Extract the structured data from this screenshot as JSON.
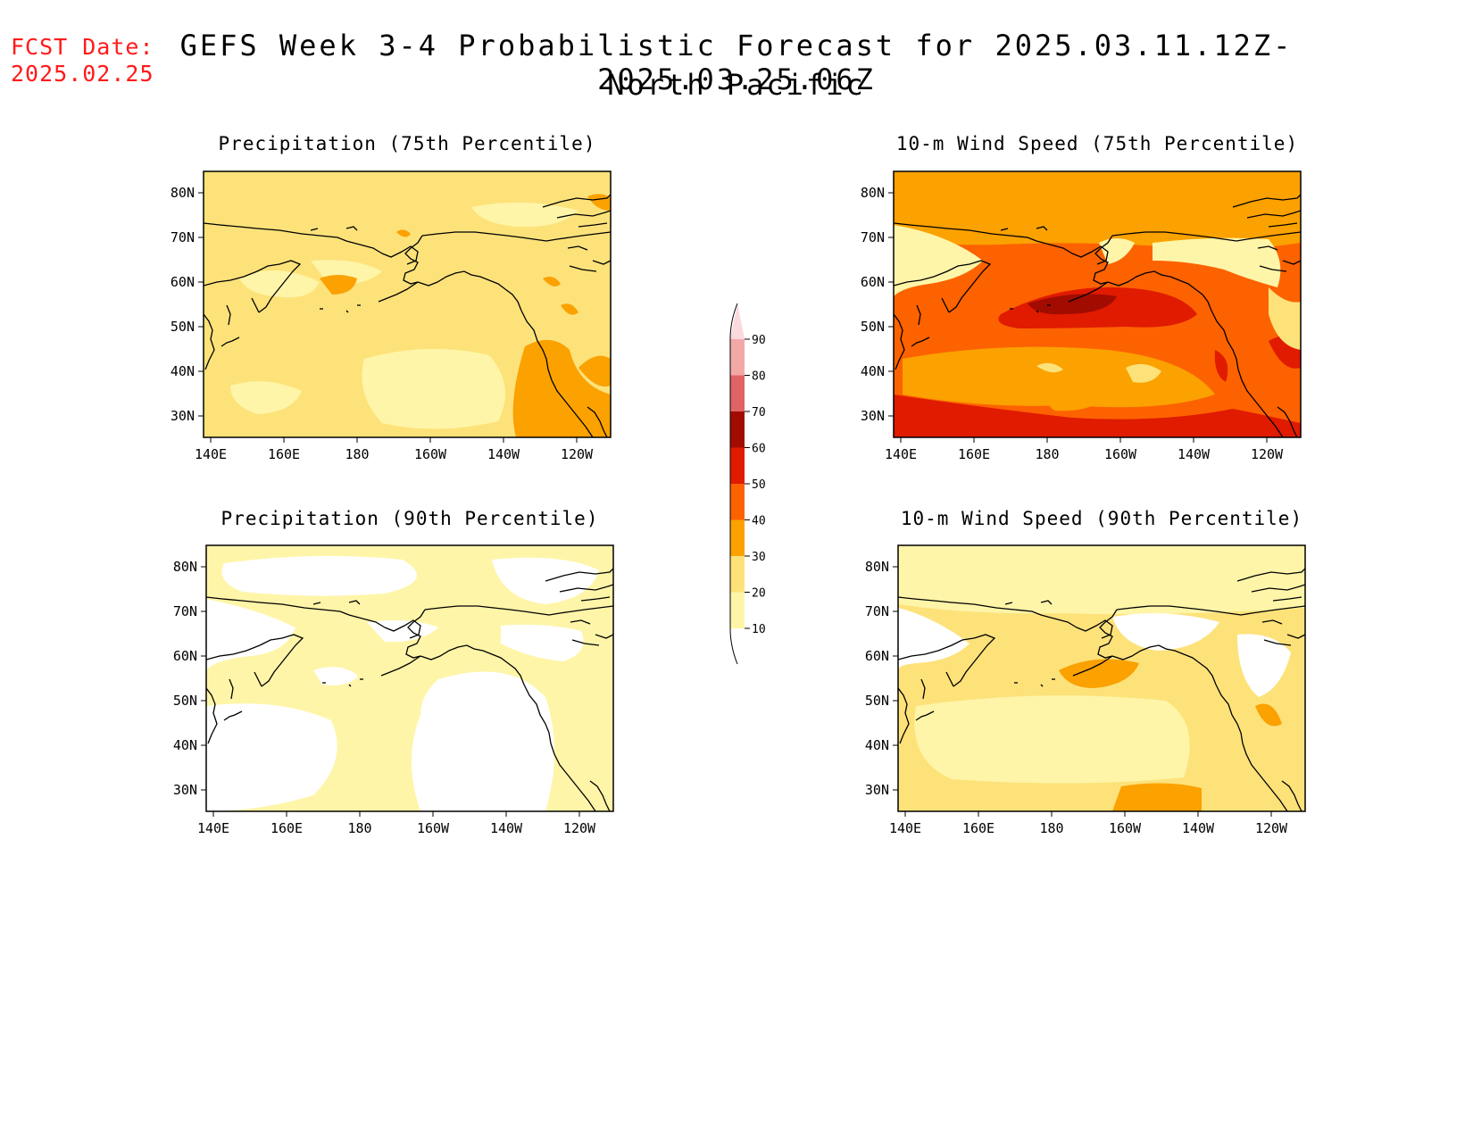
{
  "header": {
    "fcst_label": "FCST Date:",
    "fcst_date": "2025.02.25",
    "title": "GEFS Week 3-4 Probabilistic Forecast for 2025.03.11.12Z-2025.03.25.06Z",
    "subtitle": "North Pacific"
  },
  "axes": {
    "lat_labels": [
      "80N",
      "70N",
      "60N",
      "50N",
      "40N",
      "30N"
    ],
    "lon_labels": [
      "140E",
      "160E",
      "180",
      "160W",
      "140W",
      "120W"
    ]
  },
  "panels": [
    {
      "title": "Precipitation (75th Percentile)",
      "base_class": "20-30",
      "patches": [
        {
          "cls": "10-20",
          "desc": "scattered lighter patches mid-basin and arctic"
        },
        {
          "cls": "30-40",
          "desc": "patches near Aleutians and Pacific NW coast"
        }
      ]
    },
    {
      "title": "10-m Wind Speed (75th Percentile)",
      "base_class": "40-50",
      "patches": [
        {
          "cls": "30-40",
          "desc": "arctic ocean and subtropical belt"
        },
        {
          "cls": "50-60",
          "desc": "Gulf of Alaska / Aleutian core"
        },
        {
          "cls": "10-20",
          "desc": "land areas"
        }
      ]
    },
    {
      "title": "Precipitation (90th Percentile)",
      "base_class": "10-20",
      "patches": [
        {
          "cls": "below-10",
          "desc": "large blank areas over land and east-central Pacific"
        }
      ]
    },
    {
      "title": "10-m Wind Speed (90th Percentile)",
      "base_class": "20-30",
      "patches": [
        {
          "cls": "10-20",
          "desc": "arctic and land areas"
        },
        {
          "cls": "30-40",
          "desc": "small patches south of Aleutians and off Pacific NW"
        }
      ]
    }
  ],
  "colorbar": {
    "labels": [
      "90",
      "80",
      "70",
      "60",
      "50",
      "40",
      "30",
      "20",
      "10"
    ],
    "colors": {
      "10-20": "#fff5a8",
      "20-30": "#fde27a",
      "30-40": "#fba100",
      "40-50": "#fd6200",
      "50-60": "#e01b00",
      "60-70": "#a20c00",
      "70-80": "#e06464",
      "80-90": "#f3a8a8",
      "90+": "#fbd9dc",
      "below-10": "#ffffff"
    }
  }
}
